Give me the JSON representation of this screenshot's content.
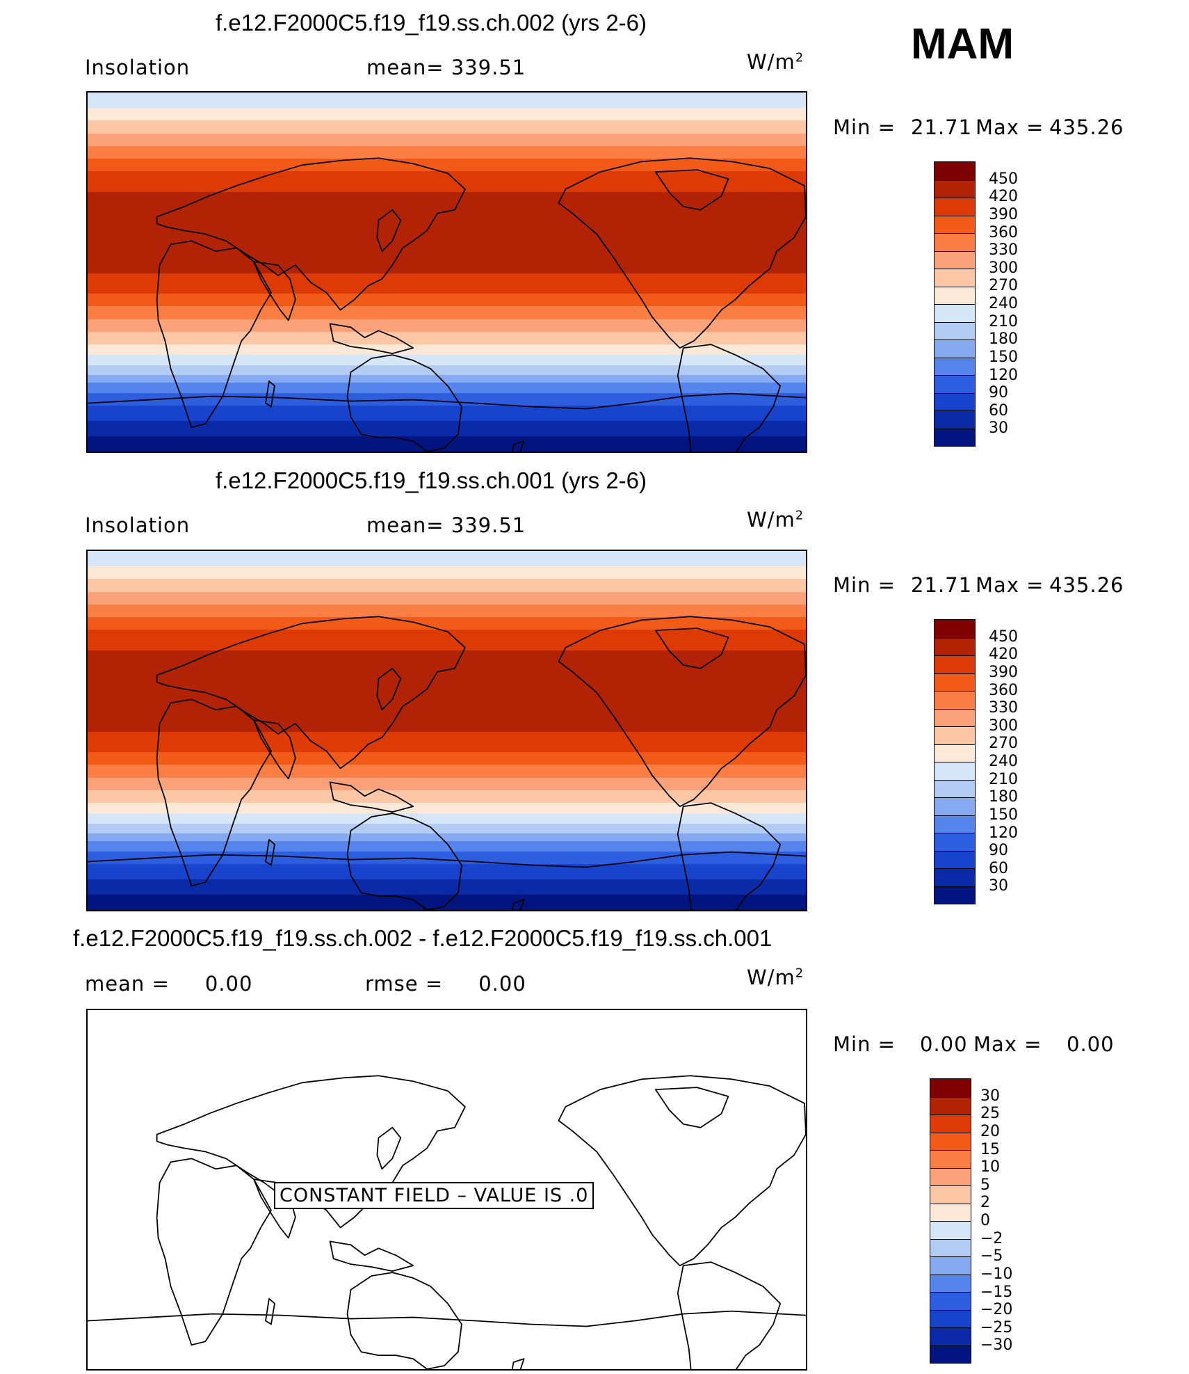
{
  "season": "MAM",
  "panels": [
    {
      "title": "f.e12.F2000C5.f19_f19.ss.ch.002 (yrs 2-6)",
      "left_label": "Insolation",
      "mean_label": "mean=  339.51",
      "units_base": "W/m",
      "units_exp": "2",
      "minmax": {
        "min_label": "Min  =",
        "min_value": "21.71",
        "max_label": "Max  =",
        "max_value": "435.26"
      },
      "colorbar": {
        "levels": [
          "450",
          "420",
          "390",
          "360",
          "330",
          "300",
          "270",
          "240",
          "210",
          "180",
          "150",
          "120",
          "90",
          "60",
          "30"
        ],
        "colors": [
          "#7f0000",
          "#b22205",
          "#dd3a06",
          "#f25a18",
          "#fb7f44",
          "#fca27a",
          "#fdc6a5",
          "#fbe8d6",
          "#d4e6f7",
          "#b2ccf4",
          "#86aaf1",
          "#5585ec",
          "#2d5ee0",
          "#1843cc",
          "#0a2aa8",
          "#021480"
        ]
      },
      "field_bands": [
        "#d4e6f7",
        "#fbe8d6",
        "#fdc6a5",
        "#fca27a",
        "#fb7f44",
        "#f25a18",
        "#dd3a06",
        "#b22205",
        "#b22205",
        "#dd3a06",
        "#f25a18",
        "#fb7f44",
        "#fca27a",
        "#fdc6a5",
        "#fbe8d6",
        "#d4e6f7",
        "#b2ccf4",
        "#86aaf1",
        "#5585ec",
        "#2d5ee0",
        "#1843cc",
        "#0a2aa8",
        "#021480"
      ],
      "field_band_weights": [
        6,
        5,
        5,
        5,
        5,
        5,
        8,
        16,
        16,
        8,
        5,
        5,
        5,
        5,
        4,
        4,
        4,
        3,
        4,
        5,
        6,
        6,
        6
      ]
    },
    {
      "title": "f.e12.F2000C5.f19_f19.ss.ch.001 (yrs 2-6)",
      "left_label": "Insolation",
      "mean_label": "mean=  339.51",
      "units_base": "W/m",
      "units_exp": "2",
      "minmax": {
        "min_label": "Min  =",
        "min_value": "21.71",
        "max_label": "Max  =",
        "max_value": "435.26"
      },
      "colorbar": {
        "levels": [
          "450",
          "420",
          "390",
          "360",
          "330",
          "300",
          "270",
          "240",
          "210",
          "180",
          "150",
          "120",
          "90",
          "60",
          "30"
        ],
        "colors": [
          "#7f0000",
          "#b22205",
          "#dd3a06",
          "#f25a18",
          "#fb7f44",
          "#fca27a",
          "#fdc6a5",
          "#fbe8d6",
          "#d4e6f7",
          "#b2ccf4",
          "#86aaf1",
          "#5585ec",
          "#2d5ee0",
          "#1843cc",
          "#0a2aa8",
          "#021480"
        ]
      },
      "field_bands": [
        "#d4e6f7",
        "#fbe8d6",
        "#fdc6a5",
        "#fca27a",
        "#fb7f44",
        "#f25a18",
        "#dd3a06",
        "#b22205",
        "#b22205",
        "#dd3a06",
        "#f25a18",
        "#fb7f44",
        "#fca27a",
        "#fdc6a5",
        "#fbe8d6",
        "#d4e6f7",
        "#b2ccf4",
        "#86aaf1",
        "#5585ec",
        "#2d5ee0",
        "#1843cc",
        "#0a2aa8",
        "#021480"
      ],
      "field_band_weights": [
        6,
        5,
        5,
        5,
        5,
        5,
        8,
        16,
        16,
        8,
        5,
        5,
        5,
        5,
        4,
        4,
        4,
        3,
        4,
        5,
        6,
        6,
        6
      ]
    },
    {
      "title": "f.e12.F2000C5.f19_f19.ss.ch.002 - f.e12.F2000C5.f19_f19.ss.ch.001",
      "left_label": "mean =     0.00",
      "mean_label": "rmse =     0.00",
      "units_base": "W/m",
      "units_exp": "2",
      "minmax": {
        "min_label": "Min  =",
        "min_value": "0.00",
        "max_label": "Max  =",
        "max_value": "0.00"
      },
      "colorbar": {
        "levels": [
          "30",
          "25",
          "20",
          "15",
          "10",
          "5",
          "2",
          "0",
          "−2",
          "−5",
          "−10",
          "−15",
          "−20",
          "−25",
          "−30"
        ],
        "colors": [
          "#7f0000",
          "#b22205",
          "#dd3a06",
          "#f25a18",
          "#fb7f44",
          "#fca27a",
          "#fdc6a5",
          "#fbe8d6",
          "#d4e6f7",
          "#b2ccf4",
          "#86aaf1",
          "#5585ec",
          "#2d5ee0",
          "#1843cc",
          "#0a2aa8",
          "#021480"
        ]
      },
      "constant_label": "CONSTANT FIELD – VALUE IS .0"
    }
  ]
}
